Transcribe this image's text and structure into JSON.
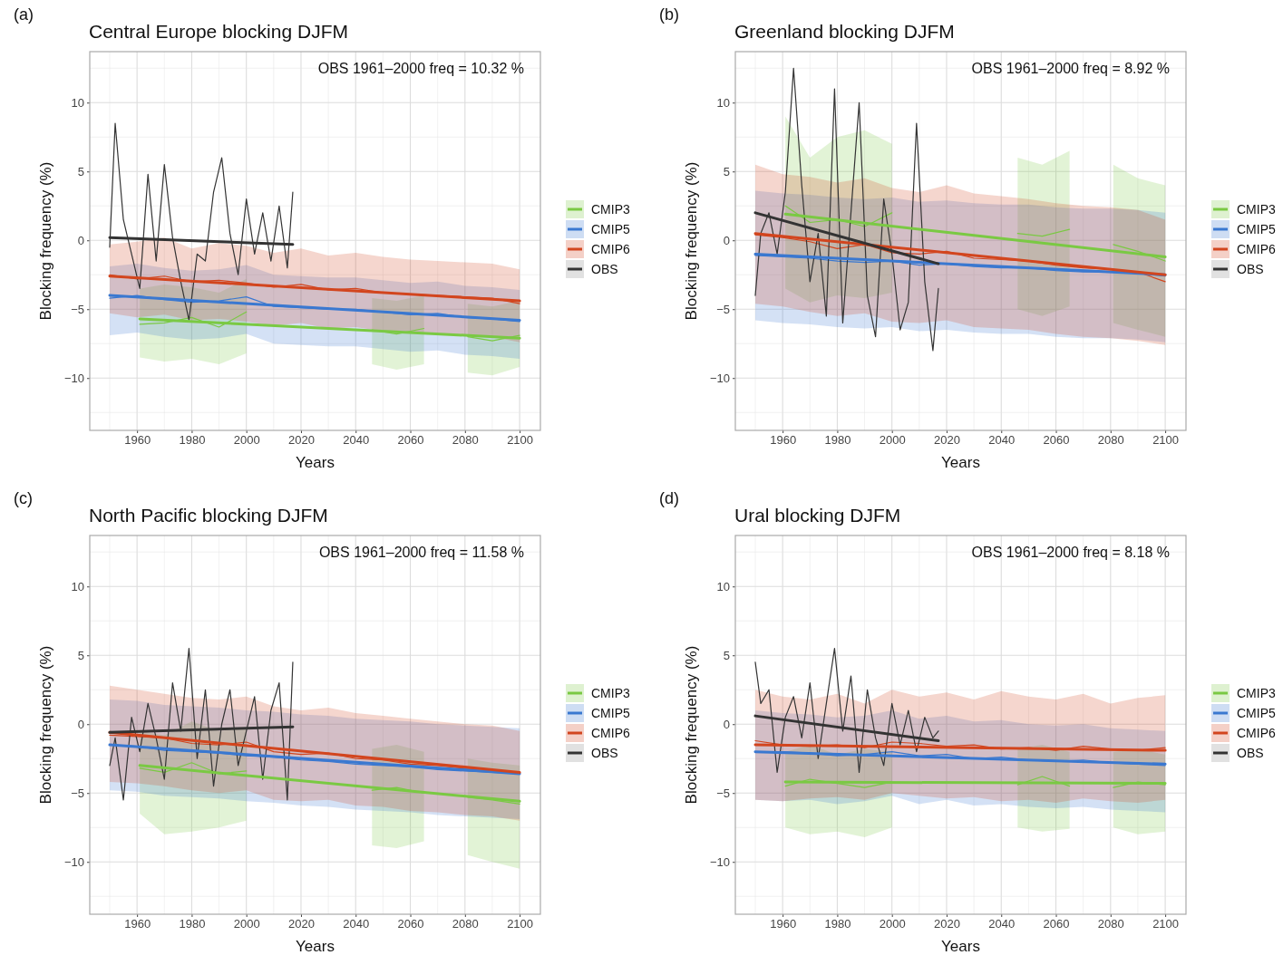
{
  "chart_data": [
    {
      "type": "line",
      "title": "Central Europe blocking DJFM",
      "xlabel": "Years",
      "ylabel": "Blocking frequency (%)",
      "annotations": [
        "(a)",
        "OBS 1961–2000 freq =  10.32 %"
      ],
      "xlim": [
        1942.7,
        2107.6
      ],
      "xticks": [
        1960,
        1980,
        2000,
        2020,
        2040,
        2060,
        2080,
        2100
      ],
      "ylim": [
        -13.8,
        13.7
      ],
      "yticks": [
        -10,
        -5,
        0,
        5,
        10
      ],
      "grid": true,
      "legend": "right",
      "series": [
        {
          "name": "CMIP3",
          "color": "#7ac943",
          "x": [
            1961,
            1970,
            1980,
            1990,
            2000,
            2020,
            2046,
            2055,
            2065,
            2075,
            2081,
            2090,
            2100
          ],
          "values": [
            -6.1,
            -6.0,
            -5.6,
            -6.3,
            -5.2,
            null,
            -6.5,
            -6.8,
            -6.4,
            null,
            -7.0,
            -7.3,
            -6.9
          ],
          "lower": [
            -8.5,
            -8.8,
            -8.6,
            -9.0,
            -8.2,
            null,
            -9.0,
            -9.4,
            -9.0,
            null,
            -9.6,
            -9.8,
            -9.2
          ],
          "upper": [
            -3.5,
            -3.2,
            -3.4,
            -3.8,
            -2.8,
            null,
            -4.2,
            -4.4,
            -4.0,
            null,
            -4.6,
            -4.8,
            -4.4
          ]
        },
        {
          "name": "CMIP5",
          "color": "#3a78d0",
          "x": [
            1950,
            1960,
            1970,
            1980,
            1990,
            2000,
            2010,
            2020,
            2030,
            2040,
            2050,
            2060,
            2070,
            2080,
            2090,
            2100
          ],
          "values": [
            -4.2,
            -4.0,
            -4.3,
            -4.5,
            -4.4,
            -4.1,
            -4.8,
            -4.9,
            -5.0,
            -5.0,
            -5.2,
            -5.4,
            -5.3,
            -5.6,
            -5.7,
            -5.9
          ],
          "lower": [
            -6.9,
            -6.7,
            -7.0,
            -7.2,
            -7.1,
            -6.8,
            -7.5,
            -7.6,
            -7.7,
            -7.7,
            -7.9,
            -8.1,
            -8.0,
            -8.3,
            -8.4,
            -8.6
          ],
          "upper": [
            -1.9,
            -1.7,
            -2.0,
            -2.2,
            -2.1,
            -1.8,
            -2.5,
            -2.6,
            -2.7,
            -2.7,
            -2.9,
            -3.1,
            -3.0,
            -3.3,
            -3.4,
            -3.6
          ]
        },
        {
          "name": "CMIP6",
          "color": "#d2451e",
          "x": [
            1950,
            1960,
            1970,
            1980,
            1990,
            2000,
            2010,
            2020,
            2030,
            2040,
            2050,
            2060,
            2070,
            2080,
            2090,
            2100
          ],
          "values": [
            -2.5,
            -2.8,
            -2.6,
            -3.0,
            -2.9,
            -3.1,
            -3.4,
            -3.2,
            -3.6,
            -3.5,
            -3.8,
            -3.9,
            -4.0,
            -4.1,
            -4.2,
            -4.6
          ],
          "lower": [
            -5.3,
            -5.6,
            -5.4,
            -5.8,
            -5.7,
            -5.9,
            -6.2,
            -6.0,
            -6.4,
            -6.3,
            -6.6,
            -6.7,
            -6.8,
            -6.9,
            -7.0,
            -7.4
          ],
          "upper": [
            -0.3,
            -0.1,
            0.2,
            -0.6,
            -0.2,
            -0.4,
            -0.9,
            -0.6,
            -1.1,
            -0.9,
            -1.2,
            -1.4,
            -1.5,
            -1.6,
            -1.7,
            -2.1
          ]
        },
        {
          "name": "OBS",
          "color": "#333333",
          "x": [
            1950,
            1952,
            1955,
            1958,
            1961,
            1964,
            1967,
            1970,
            1973,
            1976,
            1979,
            1982,
            1985,
            1988,
            1991,
            1994,
            1997,
            2000,
            2003,
            2006,
            2009,
            2012,
            2015,
            2017
          ],
          "values": [
            -0.5,
            8.5,
            1.5,
            -1.0,
            -3.5,
            4.8,
            -1.5,
            5.5,
            0.2,
            -3.0,
            -5.8,
            -1.0,
            -1.5,
            3.5,
            6.0,
            0.5,
            -2.5,
            3.0,
            -1.0,
            2.0,
            -1.5,
            2.5,
            -2.0,
            3.5
          ]
        },
        {
          "type": "line",
          "color": "#7ac943",
          "x": [
            1961,
            2100
          ],
          "values": [
            -5.7,
            -7.1
          ]
        },
        {
          "type": "line",
          "color": "#3a78d0",
          "x": [
            1950,
            2100
          ],
          "values": [
            -4.0,
            -5.8
          ]
        },
        {
          "type": "line",
          "color": "#d2451e",
          "x": [
            1950,
            2100
          ],
          "values": [
            -2.6,
            -4.4
          ]
        },
        {
          "type": "line",
          "color": "#333333",
          "x": [
            1950,
            2017
          ],
          "values": [
            0.2,
            -0.3
          ]
        }
      ]
    },
    {
      "type": "line",
      "title": "Greenland blocking DJFM",
      "xlabel": "Years",
      "ylabel": "Blocking frequency (%)",
      "annotations": [
        "(b)",
        "OBS 1961–2000 freq =  8.92 %"
      ],
      "xlim": [
        1942.7,
        2107.6
      ],
      "xticks": [
        1960,
        1980,
        2000,
        2020,
        2040,
        2060,
        2080,
        2100
      ],
      "ylim": [
        -13.8,
        13.7
      ],
      "yticks": [
        -10,
        -5,
        0,
        5,
        10
      ],
      "grid": true,
      "legend": "right",
      "series": [
        {
          "name": "CMIP3",
          "color": "#7ac943",
          "x": [
            1961,
            1970,
            1980,
            1990,
            2000,
            2020,
            2046,
            2055,
            2065,
            2075,
            2081,
            2090,
            2100
          ],
          "values": [
            2.5,
            1.3,
            1.5,
            1.0,
            2.0,
            null,
            0.5,
            0.3,
            0.8,
            null,
            -0.3,
            -0.8,
            -1.5
          ],
          "lower": [
            -3.5,
            -4.5,
            -4.0,
            -4.2,
            -3.8,
            null,
            -5.0,
            -5.5,
            -4.8,
            null,
            -6.0,
            -6.5,
            -7.0
          ],
          "upper": [
            9.0,
            6.0,
            7.5,
            8.0,
            7.0,
            null,
            6.0,
            5.5,
            6.5,
            null,
            5.5,
            4.5,
            4.0
          ]
        },
        {
          "name": "CMIP5",
          "color": "#3a78d0",
          "x": [
            1950,
            1960,
            1970,
            1980,
            1990,
            2000,
            2010,
            2020,
            2030,
            2040,
            2050,
            2060,
            2070,
            2080,
            2090,
            2100
          ],
          "values": [
            -1.1,
            -1.2,
            -1.3,
            -1.5,
            -1.6,
            -1.5,
            -1.8,
            -1.7,
            -1.9,
            -2.0,
            -2.0,
            -2.2,
            -2.3,
            -2.3,
            -2.4,
            -2.6
          ],
          "lower": [
            -5.8,
            -6.0,
            -6.1,
            -6.3,
            -6.4,
            -6.3,
            -6.6,
            -6.5,
            -6.7,
            -6.8,
            -6.8,
            -7.0,
            -7.1,
            -7.1,
            -7.2,
            -7.4
          ],
          "upper": [
            3.6,
            3.4,
            3.3,
            3.1,
            3.0,
            3.1,
            2.8,
            2.9,
            2.7,
            2.6,
            2.6,
            2.4,
            2.3,
            2.3,
            2.2,
            2.0
          ]
        },
        {
          "name": "CMIP6",
          "color": "#d2451e",
          "x": [
            1950,
            1960,
            1970,
            1980,
            1990,
            2000,
            2010,
            2020,
            2030,
            2040,
            2050,
            2060,
            2070,
            2080,
            2090,
            2100
          ],
          "values": [
            0.4,
            0.2,
            -0.1,
            -0.6,
            -0.3,
            -0.9,
            -1.0,
            -0.8,
            -1.3,
            -1.4,
            -1.5,
            -1.8,
            -2.0,
            -2.1,
            -2.3,
            -3.0
          ],
          "lower": [
            -4.6,
            -4.8,
            -5.2,
            -5.5,
            -5.3,
            -5.9,
            -6.0,
            -5.8,
            -6.3,
            -6.4,
            -6.5,
            -6.8,
            -7.0,
            -7.1,
            -7.3,
            -7.6
          ],
          "upper": [
            5.5,
            4.8,
            4.6,
            4.2,
            4.5,
            3.8,
            3.5,
            4.0,
            3.4,
            3.2,
            3.0,
            2.7,
            2.5,
            2.4,
            2.2,
            1.5
          ]
        },
        {
          "name": "OBS",
          "color": "#333333",
          "x": [
            1950,
            1952,
            1955,
            1958,
            1961,
            1964,
            1967,
            1970,
            1973,
            1976,
            1979,
            1982,
            1985,
            1988,
            1991,
            1994,
            1997,
            2000,
            2003,
            2006,
            2009,
            2012,
            2015,
            2017
          ],
          "values": [
            -4.0,
            0.5,
            2.0,
            -1.0,
            3.5,
            12.5,
            4.0,
            -3.0,
            0.5,
            -5.5,
            11.0,
            -6.0,
            2.0,
            10.0,
            -4.0,
            -7.0,
            3.0,
            -1.0,
            -6.5,
            -4.5,
            8.5,
            -3.0,
            -8.0,
            -3.5
          ]
        },
        {
          "type": "line",
          "color": "#7ac943",
          "x": [
            1961,
            2100
          ],
          "values": [
            1.9,
            -1.2
          ]
        },
        {
          "type": "line",
          "color": "#3a78d0",
          "x": [
            1950,
            2100
          ],
          "values": [
            -1.0,
            -2.5
          ]
        },
        {
          "type": "line",
          "color": "#d2451e",
          "x": [
            1950,
            2100
          ],
          "values": [
            0.5,
            -2.5
          ]
        },
        {
          "type": "line",
          "color": "#333333",
          "x": [
            1950,
            2017
          ],
          "values": [
            2.0,
            -1.7
          ]
        }
      ]
    },
    {
      "type": "line",
      "title": "North Pacific blocking DJFM",
      "xlabel": "Years",
      "ylabel": "Blocking frequency (%)",
      "annotations": [
        "(c)",
        "OBS 1961–2000 freq =  11.58 %"
      ],
      "xlim": [
        1942.7,
        2107.6
      ],
      "xticks": [
        1960,
        1980,
        2000,
        2020,
        2040,
        2060,
        2080,
        2100
      ],
      "ylim": [
        -13.8,
        13.7
      ],
      "yticks": [
        -10,
        -5,
        0,
        5,
        10
      ],
      "grid": true,
      "legend": "right",
      "series": [
        {
          "name": "CMIP3",
          "color": "#7ac943",
          "x": [
            1961,
            1970,
            1980,
            1990,
            2000,
            2020,
            2046,
            2055,
            2065,
            2075,
            2081,
            2090,
            2100
          ],
          "values": [
            -3.2,
            -3.5,
            -2.8,
            -3.6,
            -3.4,
            null,
            -4.8,
            -4.6,
            -5.0,
            null,
            -5.3,
            -5.5,
            -5.8
          ],
          "lower": [
            -6.5,
            -8.0,
            -7.8,
            -7.5,
            -7.0,
            null,
            -8.8,
            -9.0,
            -8.5,
            null,
            -9.5,
            -10.0,
            -10.5
          ],
          "upper": [
            -0.5,
            -0.8,
            0.2,
            -0.5,
            -0.3,
            null,
            -1.8,
            -1.5,
            -2.0,
            null,
            -2.5,
            -2.8,
            -3.0
          ]
        },
        {
          "name": "CMIP5",
          "color": "#3a78d0",
          "x": [
            1950,
            1960,
            1970,
            1980,
            1990,
            2000,
            2010,
            2020,
            2030,
            2040,
            2050,
            2060,
            2070,
            2080,
            2090,
            2100
          ],
          "values": [
            -1.5,
            -1.6,
            -1.9,
            -2.0,
            -2.1,
            -2.3,
            -2.4,
            -2.6,
            -2.7,
            -2.9,
            -3.0,
            -3.1,
            -3.3,
            -3.4,
            -3.5,
            -3.6
          ],
          "lower": [
            -4.8,
            -4.9,
            -5.2,
            -5.3,
            -5.4,
            -5.6,
            -5.7,
            -5.9,
            -6.0,
            -6.2,
            -6.3,
            -6.4,
            -6.6,
            -6.7,
            -6.8,
            -6.9
          ],
          "upper": [
            1.8,
            1.7,
            1.4,
            1.3,
            1.2,
            1.0,
            0.9,
            0.7,
            0.6,
            0.4,
            0.3,
            0.2,
            0.0,
            -0.1,
            -0.2,
            -0.3
          ]
        },
        {
          "name": "CMIP6",
          "color": "#d2451e",
          "x": [
            1950,
            1960,
            1970,
            1980,
            1990,
            2000,
            2010,
            2020,
            2030,
            2040,
            2050,
            2060,
            2070,
            2080,
            2090,
            2100
          ],
          "values": [
            -0.8,
            -0.9,
            -1.0,
            -1.4,
            -1.5,
            -1.3,
            -2.0,
            -2.2,
            -2.1,
            -2.5,
            -2.6,
            -2.9,
            -3.0,
            -3.2,
            -3.3,
            -3.6
          ],
          "lower": [
            -4.2,
            -4.3,
            -4.5,
            -4.8,
            -5.0,
            -4.8,
            -5.5,
            -5.6,
            -5.5,
            -5.9,
            -6.0,
            -6.3,
            -6.4,
            -6.6,
            -6.7,
            -7.0
          ],
          "upper": [
            2.8,
            2.5,
            2.2,
            1.9,
            1.8,
            2.0,
            1.3,
            1.0,
            1.2,
            0.8,
            0.6,
            0.4,
            0.2,
            0.0,
            -0.1,
            -0.5
          ]
        },
        {
          "name": "OBS",
          "color": "#333333",
          "x": [
            1950,
            1952,
            1955,
            1958,
            1961,
            1964,
            1967,
            1970,
            1973,
            1976,
            1979,
            1982,
            1985,
            1988,
            1991,
            1994,
            1997,
            2000,
            2003,
            2006,
            2009,
            2012,
            2015,
            2017
          ],
          "values": [
            -3.0,
            -1.0,
            -5.5,
            0.5,
            -2.0,
            1.5,
            -1.0,
            -4.0,
            3.0,
            -0.5,
            5.5,
            -2.5,
            2.5,
            -4.5,
            0.0,
            2.5,
            -3.0,
            -0.5,
            2.0,
            -4.0,
            1.0,
            3.0,
            -5.5,
            4.5
          ]
        },
        {
          "type": "line",
          "color": "#7ac943",
          "x": [
            1961,
            2100
          ],
          "values": [
            -3.0,
            -5.6
          ]
        },
        {
          "type": "line",
          "color": "#3a78d0",
          "x": [
            1950,
            2100
          ],
          "values": [
            -1.5,
            -3.6
          ]
        },
        {
          "type": "line",
          "color": "#d2451e",
          "x": [
            1950,
            2100
          ],
          "values": [
            -0.6,
            -3.5
          ]
        },
        {
          "type": "line",
          "color": "#333333",
          "x": [
            1950,
            2017
          ],
          "values": [
            -0.6,
            -0.2
          ]
        }
      ]
    },
    {
      "type": "line",
      "title": "Ural blocking DJFM",
      "xlabel": "Years",
      "ylabel": "Blocking frequency (%)",
      "annotations": [
        "(d)",
        "OBS 1961–2000 freq =  8.18 %"
      ],
      "xlim": [
        1942.7,
        2107.6
      ],
      "xticks": [
        1960,
        1980,
        2000,
        2020,
        2040,
        2060,
        2080,
        2100
      ],
      "ylim": [
        -13.8,
        13.7
      ],
      "yticks": [
        -10,
        -5,
        0,
        5,
        10
      ],
      "grid": true,
      "legend": "right",
      "series": [
        {
          "name": "CMIP3",
          "color": "#7ac943",
          "x": [
            1961,
            1970,
            1980,
            1990,
            2000,
            2020,
            2046,
            2055,
            2065,
            2075,
            2081,
            2090,
            2100
          ],
          "values": [
            -4.5,
            -4.0,
            -4.3,
            -4.6,
            -4.2,
            null,
            -4.4,
            -3.8,
            -4.5,
            null,
            -4.6,
            -4.2,
            -4.4
          ],
          "lower": [
            -7.5,
            -8.0,
            -7.8,
            -8.2,
            -7.5,
            null,
            -7.5,
            -7.8,
            -7.6,
            null,
            -7.5,
            -8.0,
            -7.8
          ],
          "upper": [
            -2.0,
            -1.5,
            -2.2,
            -1.8,
            -2.0,
            null,
            -1.8,
            -1.5,
            -2.0,
            null,
            -2.0,
            -1.8,
            -2.2
          ]
        },
        {
          "name": "CMIP5",
          "color": "#3a78d0",
          "x": [
            1950,
            1960,
            1970,
            1980,
            1990,
            2000,
            2010,
            2020,
            2030,
            2040,
            2050,
            2060,
            2070,
            2080,
            2090,
            2100
          ],
          "values": [
            -2.0,
            -2.0,
            -2.1,
            -2.3,
            -2.2,
            -2.0,
            -2.3,
            -2.2,
            -2.5,
            -2.4,
            -2.6,
            -2.7,
            -2.6,
            -2.8,
            -2.9,
            -3.0
          ],
          "lower": [
            -5.5,
            -5.6,
            -5.5,
            -5.8,
            -5.6,
            -5.2,
            -5.8,
            -5.5,
            -5.9,
            -5.8,
            -6.0,
            -6.1,
            -6.0,
            -6.2,
            -6.3,
            -6.4
          ],
          "upper": [
            1.0,
            0.8,
            0.7,
            0.5,
            0.6,
            1.0,
            0.4,
            0.6,
            0.2,
            0.3,
            0.0,
            -0.1,
            0.0,
            -0.3,
            -0.4,
            -0.5
          ]
        },
        {
          "name": "CMIP6",
          "color": "#d2451e",
          "x": [
            1950,
            1960,
            1970,
            1980,
            1990,
            2000,
            2010,
            2020,
            2030,
            2040,
            2050,
            2060,
            2070,
            2080,
            2090,
            2100
          ],
          "values": [
            -1.2,
            -1.5,
            -1.6,
            -1.5,
            -1.7,
            -1.3,
            -1.4,
            -1.6,
            -1.5,
            -1.8,
            -1.7,
            -1.9,
            -1.6,
            -1.8,
            -1.9,
            -1.7
          ],
          "lower": [
            -5.5,
            -5.6,
            -5.4,
            -5.3,
            -5.5,
            -5.0,
            -5.2,
            -5.4,
            -5.3,
            -5.6,
            -5.5,
            -5.7,
            -5.4,
            -5.6,
            -5.7,
            -5.5
          ],
          "upper": [
            2.5,
            2.0,
            1.8,
            2.2,
            1.5,
            2.5,
            2.0,
            2.3,
            1.8,
            2.4,
            2.0,
            1.8,
            2.2,
            1.5,
            1.9,
            2.1
          ]
        },
        {
          "name": "OBS",
          "color": "#333333",
          "x": [
            1950,
            1952,
            1955,
            1958,
            1961,
            1964,
            1967,
            1970,
            1973,
            1976,
            1979,
            1982,
            1985,
            1988,
            1991,
            1994,
            1997,
            2000,
            2003,
            2006,
            2009,
            2012,
            2015,
            2017
          ],
          "values": [
            4.5,
            1.5,
            2.5,
            -3.5,
            0.5,
            2.0,
            -1.0,
            3.0,
            -2.5,
            1.5,
            5.5,
            -0.5,
            3.5,
            -3.5,
            2.5,
            -1.0,
            -3.0,
            1.5,
            -1.5,
            1.0,
            -2.0,
            0.5,
            -1.0,
            -0.5
          ]
        },
        {
          "type": "line",
          "color": "#7ac943",
          "x": [
            1961,
            2100
          ],
          "values": [
            -4.2,
            -4.3
          ]
        },
        {
          "type": "line",
          "color": "#3a78d0",
          "x": [
            1950,
            2100
          ],
          "values": [
            -2.0,
            -2.9
          ]
        },
        {
          "type": "line",
          "color": "#d2451e",
          "x": [
            1950,
            2100
          ],
          "values": [
            -1.5,
            -1.9
          ]
        },
        {
          "type": "line",
          "color": "#333333",
          "x": [
            1950,
            2017
          ],
          "values": [
            0.6,
            -1.2
          ]
        }
      ]
    }
  ]
}
